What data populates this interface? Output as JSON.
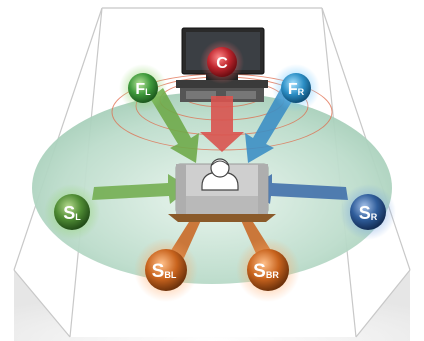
{
  "speakers": {
    "c": {
      "main": "C",
      "sub": "",
      "color": "#c0262e",
      "role": "center"
    },
    "fl": {
      "main": "F",
      "sub": "L",
      "color": "#3f9a3c",
      "role": "front-left"
    },
    "fr": {
      "main": "F",
      "sub": "R",
      "color": "#2c8fc6",
      "role": "front-right"
    },
    "sl": {
      "main": "S",
      "sub": "L",
      "color": "#4f8c34",
      "role": "surround-left"
    },
    "sr": {
      "main": "S",
      "sub": "R",
      "color": "#2f5d9b",
      "role": "surround-right"
    },
    "sbl": {
      "main": "S",
      "sub": "BL",
      "color": "#c9641e",
      "role": "surround-back-left"
    },
    "sbr": {
      "main": "S",
      "sub": "BR",
      "color": "#c9641e",
      "role": "surround-back-right"
    }
  },
  "colors": {
    "floor": "#b9dcc9",
    "room_lines": "#c8c8c8",
    "arrow_center": "#d9534f",
    "arrow_green": "#6faa4a",
    "arrow_blue": "#3d8fc4",
    "arrow_navy": "#3a6aa8",
    "arrow_orange": "#c96a28"
  },
  "icons": {
    "tv": "tv-icon",
    "listener": "listener-icon",
    "couch": "couch-icon"
  }
}
